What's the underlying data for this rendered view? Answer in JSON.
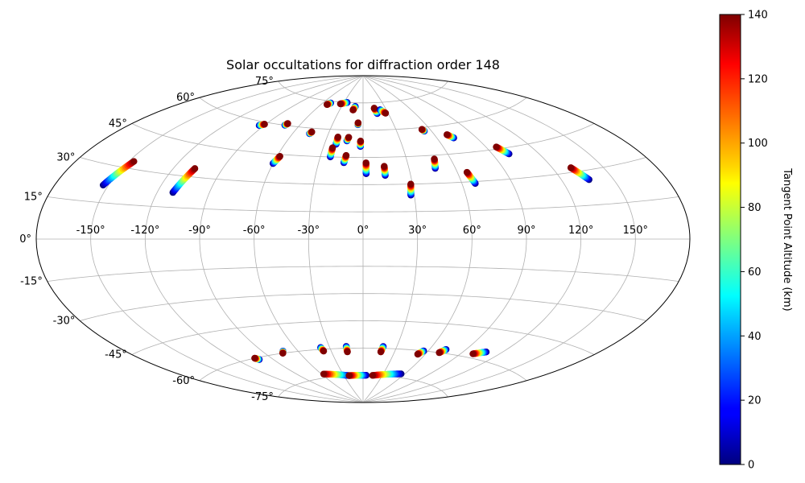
{
  "chart_data": {
    "type": "scatter",
    "projection": "aitoff",
    "title": "Solar occultations for diffraction order 148",
    "xlabel": "",
    "ylabel": "",
    "grid": true,
    "colormap": "jet",
    "lon_ticks": [
      -150,
      -120,
      -90,
      -60,
      -30,
      0,
      30,
      60,
      90,
      120,
      150
    ],
    "lat_ticks": [
      -75,
      -60,
      -45,
      -30,
      -15,
      0,
      15,
      30,
      45,
      60,
      75
    ],
    "lon_tick_labels": [
      "-150°",
      "-120°",
      "-90°",
      "-60°",
      "-30°",
      "0°",
      "30°",
      "60°",
      "90°",
      "120°",
      "150°"
    ],
    "lat_tick_labels": [
      "-75°",
      "-60°",
      "-45°",
      "-30°",
      "-15°",
      "0°",
      "15°",
      "30°",
      "45°",
      "60°",
      "75°"
    ],
    "colorbar": {
      "label": "Tangent Point Altitude (km)",
      "min": 0,
      "max": 140,
      "ticks": [
        0,
        20,
        40,
        60,
        80,
        100,
        120,
        140
      ],
      "tick_labels": [
        "0",
        "20",
        "40",
        "60",
        "80",
        "100",
        "120",
        "140"
      ]
    },
    "tracks": [
      {
        "lon": [
          -153,
          -147
        ],
        "lat": [
          22,
          33
        ],
        "alt": [
          0,
          140
        ]
      },
      {
        "lon": [
          -111,
          -107
        ],
        "lat": [
          22,
          34
        ],
        "alt": [
          0,
          140
        ]
      },
      {
        "lon": [
          -94,
          -91
        ],
        "lat": [
          58,
          59
        ],
        "alt": [
          0,
          140
        ]
      },
      {
        "lon": [
          -73,
          -72
        ],
        "lat": [
          60,
          61
        ],
        "alt": [
          0,
          140
        ]
      },
      {
        "lon": [
          -60,
          -58
        ],
        "lat": [
          40,
          44
        ],
        "alt": [
          0,
          140
        ]
      },
      {
        "lon": [
          -46,
          -45
        ],
        "lat": [
          57,
          58
        ],
        "alt": [
          0,
          140
        ]
      },
      {
        "lon": [
          -52,
          -49
        ],
        "lat": [
          73,
          74
        ],
        "alt": [
          140,
          0
        ]
      },
      {
        "lon": [
          -34,
          -25
        ],
        "lat": [
          74,
          75
        ],
        "alt": [
          140,
          0
        ]
      },
      {
        "lon": [
          -21,
          -21
        ],
        "lat": [
          52,
          56
        ],
        "alt": [
          0,
          140
        ]
      },
      {
        "lon": [
          -23,
          -23
        ],
        "lat": [
          45,
          50
        ],
        "alt": [
          0,
          140
        ]
      },
      {
        "lon": [
          -13,
          -12
        ],
        "lat": [
          54,
          56
        ],
        "alt": [
          0,
          140
        ]
      },
      {
        "lon": [
          -13,
          -12
        ],
        "lat": [
          42,
          46
        ],
        "alt": [
          0,
          140
        ]
      },
      {
        "lon": [
          -13,
          -11
        ],
        "lat": [
          71,
          73
        ],
        "alt": [
          140,
          0
        ]
      },
      {
        "lon": [
          -5,
          -5
        ],
        "lat": [
          63,
          64
        ],
        "alt": [
          0,
          140
        ]
      },
      {
        "lon": [
          -2,
          -2
        ],
        "lat": [
          51,
          54
        ],
        "alt": [
          0,
          140
        ]
      },
      {
        "lon": [
          2,
          2
        ],
        "lat": [
          36,
          42
        ],
        "alt": [
          0,
          140
        ]
      },
      {
        "lon": [
          14,
          14
        ],
        "lat": [
          35,
          40
        ],
        "alt": [
          0,
          140
        ]
      },
      {
        "lon": [
          17,
          15
        ],
        "lat": [
          69,
          72
        ],
        "alt": [
          0,
          140
        ]
      },
      {
        "lon": [
          28,
          29
        ],
        "lat": [
          24,
          30
        ],
        "alt": [
          0,
          140
        ]
      },
      {
        "lon": [
          27,
          22
        ],
        "lat": [
          69,
          71
        ],
        "alt": [
          140,
          0
        ]
      },
      {
        "lon": [
          47,
          49
        ],
        "lat": [
          38,
          43
        ],
        "alt": [
          0,
          140
        ]
      },
      {
        "lon": [
          54,
          53
        ],
        "lat": [
          58,
          59
        ],
        "alt": [
          0,
          140
        ]
      },
      {
        "lon": [
          68,
          66
        ],
        "lat": [
          29,
          35
        ],
        "alt": [
          0,
          140
        ]
      },
      {
        "lon": [
          73,
          70
        ],
        "lat": [
          53,
          55
        ],
        "alt": [
          0,
          140
        ]
      },
      {
        "lon": [
          101,
          97
        ],
        "lat": [
          42,
          46
        ],
        "alt": [
          0,
          140
        ]
      },
      {
        "lon": [
          136,
          131
        ],
        "lat": [
          26,
          32
        ],
        "alt": [
          0,
          140
        ]
      },
      {
        "lon": [
          -75,
          -73
        ],
        "lat": [
          -60,
          -59
        ],
        "alt": [
          140,
          0
        ]
      },
      {
        "lon": [
          -104,
          -102
        ],
        "lat": [
          -60,
          -61
        ],
        "alt": [
          140,
          0
        ]
      },
      {
        "lon": [
          -37,
          -38
        ],
        "lat": [
          -61,
          -59
        ],
        "alt": [
          140,
          0
        ]
      },
      {
        "lon": [
          -15,
          -15
        ],
        "lat": [
          -62,
          -59
        ],
        "alt": [
          140,
          0
        ]
      },
      {
        "lon": [
          17,
          18
        ],
        "lat": [
          -62,
          -59
        ],
        "alt": [
          140,
          0
        ]
      },
      {
        "lon": [
          53,
          56
        ],
        "lat": [
          -62,
          -60
        ],
        "alt": [
          140,
          0
        ]
      },
      {
        "lon": [
          71,
          74
        ],
        "lat": [
          -60,
          -58
        ],
        "alt": [
          140,
          0
        ]
      },
      {
        "lon": [
          100,
          108
        ],
        "lat": [
          -58,
          -56
        ],
        "alt": [
          140,
          0
        ]
      },
      {
        "lon": [
          -57,
          -22
        ],
        "lat": [
          -73,
          -75
        ],
        "alt": [
          140,
          0
        ]
      },
      {
        "lon": [
          -22,
          5
        ],
        "lat": [
          -75,
          -75
        ],
        "alt": [
          140,
          0
        ]
      },
      {
        "lon": [
          15,
          55
        ],
        "lat": [
          -75,
          -73
        ],
        "alt": [
          140,
          0
        ]
      }
    ]
  }
}
